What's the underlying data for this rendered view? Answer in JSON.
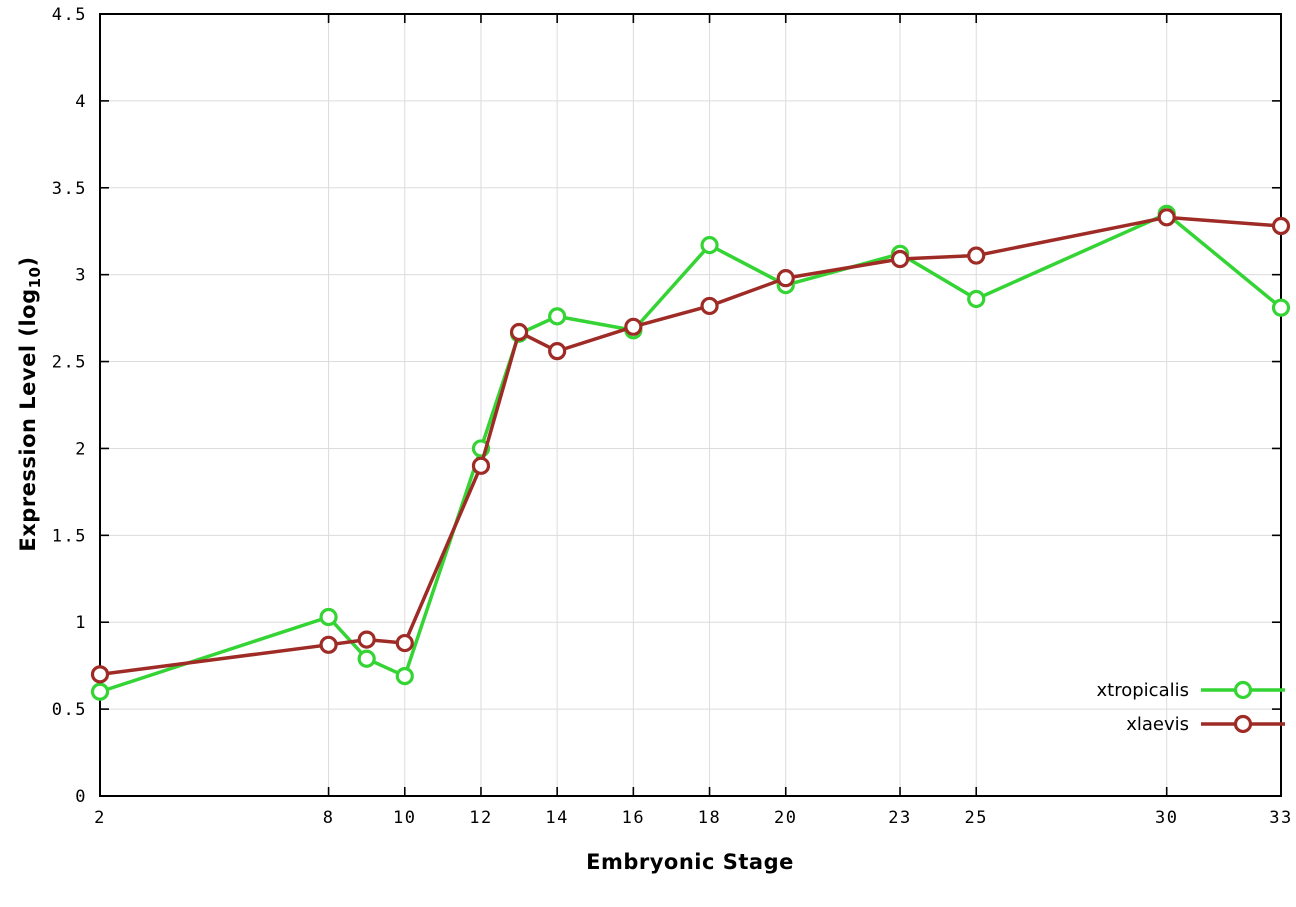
{
  "chart_data": {
    "type": "line",
    "title": "",
    "xlabel": "Embryonic Stage",
    "ylabel_prefix": "Expression Level (log",
    "ylabel_sub": "10",
    "ylabel_suffix": ")",
    "xlim": [
      2,
      33
    ],
    "ylim": [
      0,
      4.5
    ],
    "xticks": [
      2,
      8,
      10,
      12,
      14,
      16,
      18,
      20,
      23,
      25,
      30,
      33
    ],
    "yticks": [
      0,
      0.5,
      1,
      1.5,
      2,
      2.5,
      3,
      3.5,
      4,
      4.5
    ],
    "grid": true,
    "legend_position": "bottom-right",
    "background_color": "#ffffff",
    "grid_color": "#dcdcdc",
    "axis_color": "#000000",
    "x": [
      2,
      8,
      9,
      10,
      12,
      13,
      14,
      16,
      18,
      20,
      23,
      25,
      30,
      33
    ],
    "series": [
      {
        "name": "xtropicalis",
        "color": "#33d433",
        "values": [
          0.6,
          1.03,
          0.79,
          0.69,
          2.0,
          2.66,
          2.76,
          2.68,
          3.17,
          2.94,
          3.12,
          2.86,
          3.35,
          2.81
        ]
      },
      {
        "name": "xlaevis",
        "color": "#9e2b25",
        "values": [
          0.7,
          0.87,
          0.9,
          0.88,
          1.9,
          2.67,
          2.56,
          2.7,
          2.82,
          2.98,
          3.09,
          3.11,
          3.33,
          3.28
        ]
      }
    ]
  }
}
